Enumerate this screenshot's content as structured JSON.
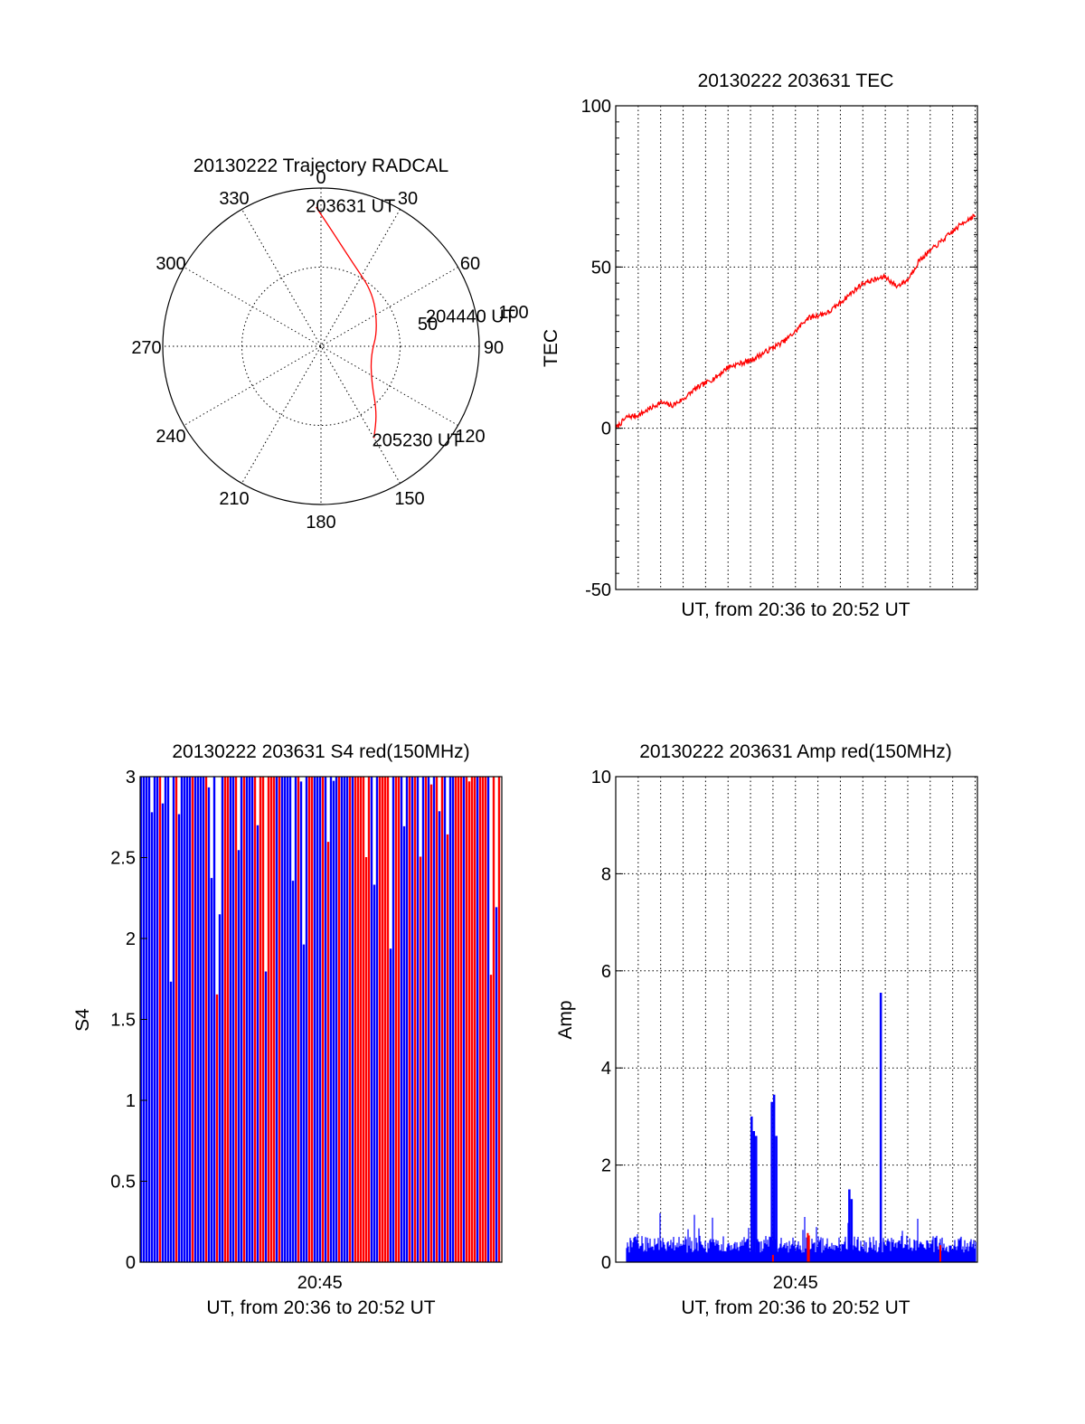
{
  "chart_data": [
    {
      "id": "trajectory",
      "type": "polar",
      "title": "20130222 Trajectory RADCAL",
      "angle_labels": [
        "0",
        "30",
        "60",
        "90",
        "120",
        "150",
        "180",
        "210",
        "240",
        "270",
        "300",
        "330"
      ],
      "radius_labels": [
        "50",
        "100"
      ],
      "rmax": 100,
      "series": [
        {
          "color": "#ff0000",
          "points": [
            {
              "az": -2,
              "zen": 88
            },
            {
              "az": 5,
              "zen": 74
            },
            {
              "az": 20,
              "zen": 57
            },
            {
              "az": 45,
              "zen": 47
            },
            {
              "az": 75,
              "zen": 37
            },
            {
              "az": 100,
              "zen": 32
            },
            {
              "az": 125,
              "zen": 39
            },
            {
              "az": 140,
              "zen": 55
            },
            {
              "az": 150,
              "zen": 67
            }
          ]
        }
      ],
      "annotations": [
        {
          "text": "203631 UT",
          "az": -1,
          "zen": 89
        },
        {
          "text": "204440 UT",
          "az": 77,
          "zen": 34
        },
        {
          "text": "205230 UT",
          "az": 150,
          "zen": 67
        }
      ]
    },
    {
      "id": "tec",
      "type": "line",
      "title": "20130222 203631 TEC",
      "ylabel": "TEC",
      "xlabel": "UT, from 20:36 to 20:52 UT",
      "ylim": [
        -50,
        100
      ],
      "yticks": [
        -50,
        0,
        50,
        100
      ],
      "xlim": [
        0,
        16.1
      ],
      "x_gridlines": [
        1,
        2,
        3,
        4,
        5,
        6,
        7,
        8,
        9,
        10,
        11,
        12,
        13,
        14,
        15,
        16
      ],
      "series": [
        {
          "color": "#ff0000",
          "x": [
            0,
            0.5,
            1,
            1.5,
            2,
            2.5,
            3,
            3.5,
            4,
            4.5,
            5,
            5.5,
            6,
            6.5,
            7,
            7.5,
            8,
            8.5,
            9,
            9.5,
            10,
            10.5,
            11,
            11.5,
            12,
            12.5,
            13,
            13.5,
            14,
            14.5,
            15,
            15.5,
            16
          ],
          "values": [
            0,
            3.5,
            4,
            6,
            8,
            7,
            9,
            12,
            14,
            16,
            19,
            20,
            21,
            23,
            25,
            27,
            30,
            34,
            35,
            36,
            39,
            42,
            45,
            46,
            47,
            44,
            46,
            52,
            55,
            58,
            61,
            64,
            66
          ]
        }
      ]
    },
    {
      "id": "s4",
      "type": "bar",
      "title": "20130222 203631 S4 red(150MHz)",
      "ylabel": "S4",
      "xlabel": "UT, from 20:36 to 20:52 UT",
      "xtick_label": "20:45",
      "xtick_value": 8,
      "xlim": [
        0,
        16.1
      ],
      "ylim": [
        0,
        3
      ],
      "yticks": [
        "0",
        "0.5",
        "1",
        "1.5",
        "2",
        "2.5",
        "3"
      ],
      "series": [
        {
          "color": "#0000ff"
        },
        {
          "color": "#ff0000"
        }
      ]
    },
    {
      "id": "amp",
      "type": "bar",
      "title": "20130222 203631 Amp red(150MHz)",
      "ylabel": "Amp",
      "xlabel": "UT, from 20:36 to 20:52 UT",
      "xtick_label": "20:45",
      "xtick_value": 8,
      "xlim": [
        0,
        16.1
      ],
      "ylim": [
        0,
        10
      ],
      "yticks": [
        "0",
        "2",
        "4",
        "6",
        "8",
        "10"
      ],
      "x_gridlines": [
        1,
        2,
        3,
        4,
        5,
        6,
        7,
        8,
        9,
        10,
        11,
        12,
        13,
        14,
        15,
        16
      ],
      "spikes": [
        {
          "x": 6.05,
          "value": 3.0
        },
        {
          "x": 6.15,
          "value": 2.7
        },
        {
          "x": 6.25,
          "value": 2.6
        },
        {
          "x": 6.95,
          "value": 3.3
        },
        {
          "x": 7.05,
          "value": 3.45
        },
        {
          "x": 7.15,
          "value": 2.6
        },
        {
          "x": 10.4,
          "value": 1.5
        },
        {
          "x": 10.5,
          "value": 1.3
        },
        {
          "x": 11.8,
          "value": 5.55
        }
      ],
      "series": [
        {
          "color": "#0000ff",
          "baseline": 0.3
        },
        {
          "color": "#ff0000"
        }
      ]
    }
  ]
}
